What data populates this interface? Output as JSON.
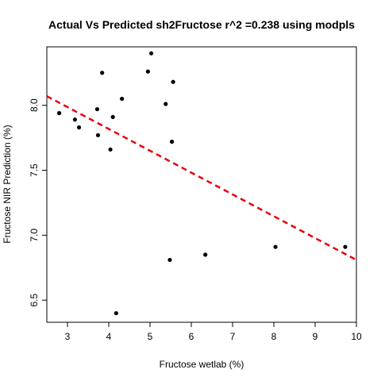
{
  "chart_data": {
    "type": "scatter",
    "title": "Actual Vs Predicted sh2Fructose r^2 =0.238 using modpls",
    "xlabel": "Fructose wetlab (%)",
    "ylabel": "Fructose NIR Prediction (%)",
    "xlim": [
      2.5,
      10.0
    ],
    "ylim": [
      6.33,
      8.45
    ],
    "x_ticks": [
      "3",
      "4",
      "5",
      "6",
      "7",
      "8",
      "9",
      "10"
    ],
    "y_ticks": [
      "6.5",
      "7.0",
      "7.5",
      "8.0"
    ],
    "grid": false,
    "points": [
      {
        "x": 2.8,
        "y": 7.94
      },
      {
        "x": 3.18,
        "y": 7.89
      },
      {
        "x": 3.28,
        "y": 7.83
      },
      {
        "x": 3.72,
        "y": 7.97
      },
      {
        "x": 3.74,
        "y": 7.77
      },
      {
        "x": 3.84,
        "y": 8.25
      },
      {
        "x": 4.04,
        "y": 7.66
      },
      {
        "x": 4.1,
        "y": 7.91
      },
      {
        "x": 4.18,
        "y": 6.4
      },
      {
        "x": 4.32,
        "y": 8.05
      },
      {
        "x": 4.95,
        "y": 8.26
      },
      {
        "x": 5.03,
        "y": 8.4
      },
      {
        "x": 5.38,
        "y": 8.01
      },
      {
        "x": 5.48,
        "y": 6.81
      },
      {
        "x": 5.53,
        "y": 7.72
      },
      {
        "x": 5.56,
        "y": 8.18
      },
      {
        "x": 6.34,
        "y": 6.85
      },
      {
        "x": 8.04,
        "y": 6.91
      },
      {
        "x": 9.73,
        "y": 6.91
      }
    ],
    "fit_line": {
      "x": [
        2.5,
        10.0
      ],
      "y": [
        8.07,
        6.81
      ],
      "color": "#e8000b",
      "style": "dashed"
    },
    "point_color": "#000000"
  }
}
